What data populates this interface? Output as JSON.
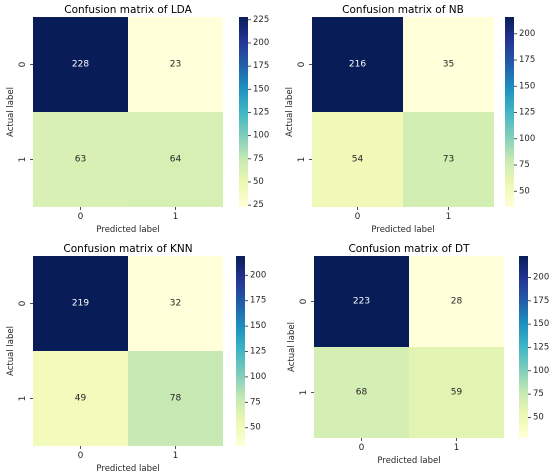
{
  "chart_data": [
    {
      "type": "heatmap",
      "title": "Confusion matrix of LDA",
      "xlabel": "Predicted label",
      "ylabel": "Actual label",
      "x_ticks": [
        "0",
        "1"
      ],
      "y_ticks": [
        "0",
        "1"
      ],
      "values": [
        [
          228,
          23
        ],
        [
          63,
          64
        ]
      ],
      "colorbar": {
        "colormap": "YlGnBu",
        "range": [
          23,
          228
        ],
        "ticks": [
          25,
          50,
          75,
          100,
          125,
          150,
          175,
          200,
          225
        ]
      }
    },
    {
      "type": "heatmap",
      "title": "Confusion matrix of NB",
      "xlabel": "Predicted label",
      "ylabel": "Actual label",
      "x_ticks": [
        "0",
        "1"
      ],
      "y_ticks": [
        "0",
        "1"
      ],
      "values": [
        [
          216,
          35
        ],
        [
          54,
          73
        ]
      ],
      "colorbar": {
        "colormap": "YlGnBu",
        "range": [
          35,
          216
        ],
        "ticks": [
          50,
          75,
          100,
          125,
          150,
          175,
          200
        ]
      }
    },
    {
      "type": "heatmap",
      "title": "Confusion matrix of KNN",
      "xlabel": "Predicted label",
      "ylabel": "Actual label",
      "x_ticks": [
        "0",
        "1"
      ],
      "y_ticks": [
        "0",
        "1"
      ],
      "values": [
        [
          219,
          32
        ],
        [
          49,
          78
        ]
      ],
      "colorbar": {
        "colormap": "YlGnBu",
        "range": [
          32,
          219
        ],
        "ticks": [
          50,
          75,
          100,
          125,
          150,
          175,
          200
        ]
      }
    },
    {
      "type": "heatmap",
      "title": "Confusion matrix of DT",
      "xlabel": "Predicted label",
      "ylabel": "Actual label",
      "x_ticks": [
        "0",
        "1"
      ],
      "y_ticks": [
        "0",
        "1"
      ],
      "values": [
        [
          223,
          28
        ],
        [
          68,
          59
        ]
      ],
      "colorbar": {
        "colormap": "YlGnBu",
        "range": [
          28,
          223
        ],
        "ticks": [
          50,
          75,
          100,
          125,
          150,
          175,
          200
        ]
      }
    }
  ]
}
